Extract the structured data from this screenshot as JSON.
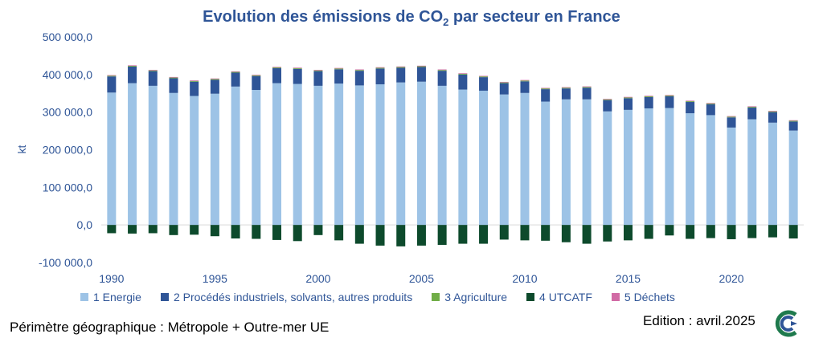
{
  "title": {
    "main": "Evolution des émissions de CO",
    "sub": "2",
    "tail": " par secteur en France"
  },
  "footer": {
    "scope": "Périmètre géographique : Métropole + Outre-mer UE",
    "edition": "Edition : avril.2025"
  },
  "colors": {
    "energie": "#9dc3e6",
    "procedes": "#2f5597",
    "agriculture": "#70ad47",
    "utcatf": "#0d4a2c",
    "dechets": "#d16ba5",
    "text": "#2f5597"
  },
  "chart_data": {
    "type": "bar",
    "stacked": true,
    "title": "Evolution des émissions de CO2 par secteur en France",
    "ylabel": "kt",
    "ylim": [
      -100000,
      500000
    ],
    "yticks": [
      "500 000,0",
      "400 000,0",
      "300 000,0",
      "200 000,0",
      "100 000,0",
      "0,0",
      "-100 000,0"
    ],
    "ytick_values": [
      500000,
      400000,
      300000,
      200000,
      100000,
      0,
      -100000
    ],
    "xticks": [
      "1990",
      "1995",
      "2000",
      "2005",
      "2010",
      "2015",
      "2020"
    ],
    "x": [
      1990,
      1991,
      1992,
      1993,
      1994,
      1995,
      1996,
      1997,
      1998,
      1999,
      2000,
      2001,
      2002,
      2003,
      2004,
      2005,
      2006,
      2007,
      2008,
      2009,
      2010,
      2011,
      2012,
      2013,
      2014,
      2015,
      2016,
      2017,
      2018,
      2019,
      2020,
      2021,
      2022,
      2023
    ],
    "legend_position": "bottom",
    "series": [
      {
        "name": "1 Energie",
        "color_key": "energie",
        "values": [
          352000,
          377000,
          370000,
          351000,
          343000,
          349000,
          368000,
          359000,
          377000,
          375000,
          370000,
          376000,
          371000,
          374000,
          379000,
          381000,
          370000,
          360000,
          357000,
          347000,
          351000,
          328000,
          334000,
          334000,
          302000,
          306000,
          310000,
          311000,
          297000,
          292000,
          259000,
          281000,
          272000,
          251000
        ]
      },
      {
        "name": "2  Procédés industriels, solvants, autres produits",
        "color_key": "procedes",
        "values": [
          43000,
          44000,
          39000,
          39000,
          38000,
          37000,
          37000,
          37000,
          40000,
          40000,
          39000,
          38000,
          39000,
          42000,
          39000,
          39000,
          40000,
          40000,
          36000,
          30000,
          31000,
          33000,
          29000,
          31000,
          30000,
          31000,
          30000,
          31000,
          30000,
          29000,
          27000,
          31000,
          28000,
          24000
        ]
      },
      {
        "name": "3  Agriculture",
        "color_key": "agriculture",
        "values": [
          2000,
          2000,
          2000,
          2000,
          2000,
          2000,
          2000,
          2000,
          2000,
          2000,
          2000,
          2000,
          2000,
          2000,
          2000,
          2000,
          2000,
          2000,
          2000,
          2000,
          2000,
          2000,
          2000,
          2000,
          2000,
          2000,
          2000,
          2000,
          2000,
          2000,
          2000,
          2000,
          2000,
          2000
        ]
      },
      {
        "name": "4  UTCATF",
        "color_key": "utcatf",
        "values": [
          -22000,
          -23000,
          -22000,
          -27000,
          -26000,
          -30000,
          -36000,
          -37000,
          -40000,
          -43000,
          -27000,
          -41000,
          -50000,
          -55000,
          -57000,
          -55000,
          -53000,
          -50000,
          -50000,
          -39000,
          -41000,
          -42000,
          -46000,
          -50000,
          -44000,
          -41000,
          -37000,
          -28000,
          -37000,
          -35000,
          -38000,
          -35000,
          -33000,
          -36000
        ]
      },
      {
        "name": "5  Déchets",
        "color_key": "dechets",
        "values": [
          1500,
          1500,
          1500,
          1500,
          1500,
          1500,
          1500,
          1500,
          1500,
          1500,
          1500,
          1500,
          1500,
          1500,
          1500,
          1500,
          1500,
          1500,
          1500,
          1500,
          1500,
          1500,
          1500,
          1500,
          1500,
          1500,
          1500,
          1500,
          1500,
          1500,
          1500,
          1500,
          1500,
          1500
        ]
      }
    ]
  }
}
